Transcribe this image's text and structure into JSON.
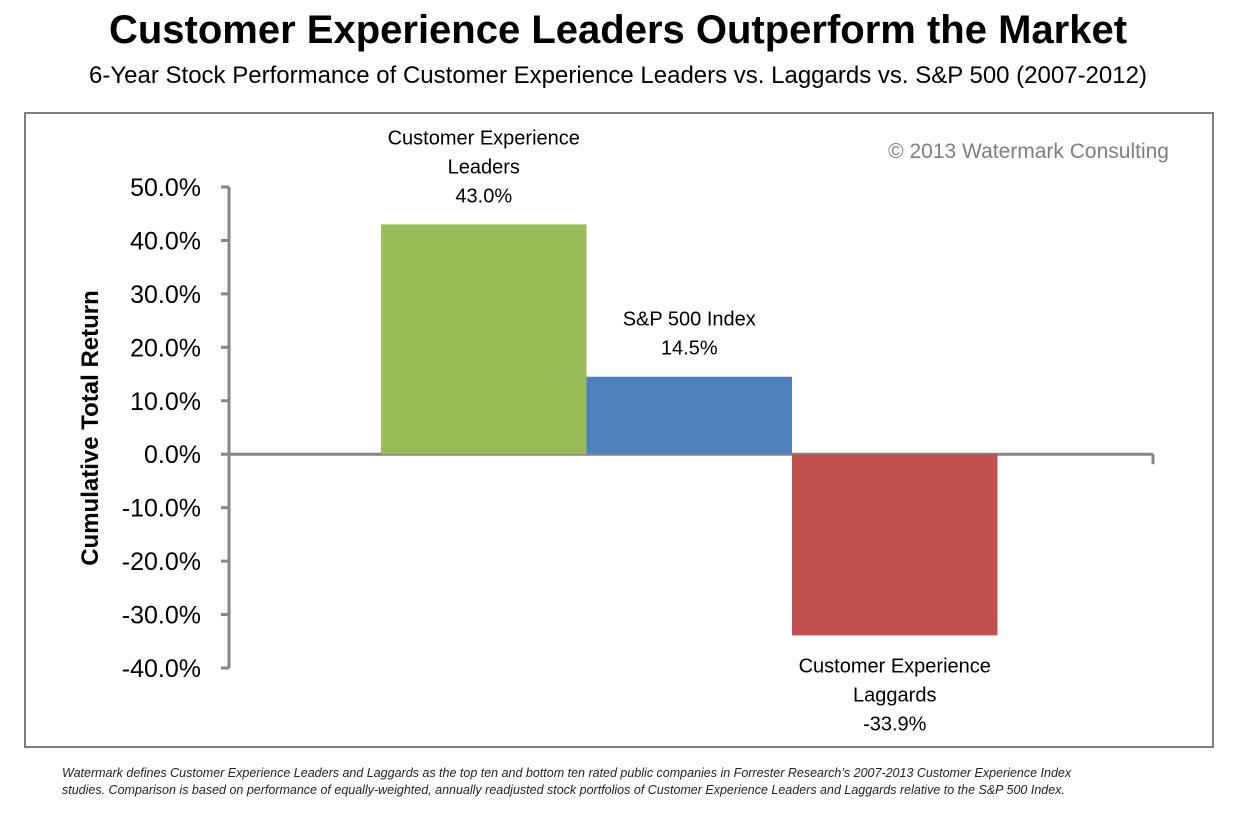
{
  "chart_data": {
    "type": "bar",
    "title": "Customer Experience Leaders Outperform the Market",
    "subtitle": "6-Year Stock Performance of Customer Experience Leaders vs. Laggards vs. S&P 500 (2007-2012)",
    "ylabel": "Cumulative Total Return",
    "xlabel": "",
    "ylim": [
      -40,
      50
    ],
    "yticks": [
      50,
      40,
      30,
      20,
      10,
      0,
      -10,
      -20,
      -30,
      -40
    ],
    "ytick_labels": [
      "50.0%",
      "40.0%",
      "30.0%",
      "20.0%",
      "10.0%",
      "0.0%",
      "-10.0%",
      "-20.0%",
      "-30.0%",
      "-40.0%"
    ],
    "grid": false,
    "series": [
      {
        "label_lines": [
          "Customer Experience",
          "Leaders"
        ],
        "value": 43.0,
        "value_label": "43.0%",
        "color": "#9BBB59"
      },
      {
        "label_lines": [
          "S&P 500 Index"
        ],
        "value": 14.5,
        "value_label": "14.5%",
        "color": "#4F81BD"
      },
      {
        "label_lines": [
          "Customer Experience",
          "Laggards"
        ],
        "value": -33.9,
        "value_label": "-33.9%",
        "color": "#C0504D"
      }
    ],
    "watermark": "© 2013 Watermark Consulting"
  },
  "footnote": {
    "line1": "Watermark defines Customer Experience Leaders and Laggards as the top ten and bottom ten rated public companies in Forrester Research’s 2007-2013  Customer Experience Index",
    "line2": "studies. Comparison is based on performance of equally-weighted, annually readjusted stock portfolios of Customer Experience Leaders and Laggards relative  to the S&P 500 Index."
  }
}
